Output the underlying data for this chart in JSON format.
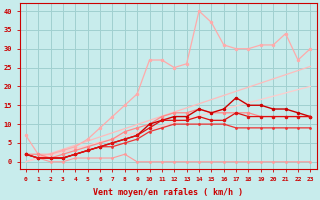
{
  "xlabel": "Vent moyen/en rafales ( km/h )",
  "background_color": "#c8ecec",
  "grid_color": "#a0d0d0",
  "x": [
    0,
    1,
    2,
    3,
    4,
    5,
    6,
    7,
    8,
    9,
    10,
    11,
    12,
    13,
    14,
    15,
    16,
    17,
    18,
    19,
    20,
    21,
    22,
    23
  ],
  "lines": [
    {
      "y": [
        7,
        2,
        2,
        3,
        4,
        6,
        9,
        12,
        15,
        18,
        27,
        27,
        25,
        26,
        40,
        37,
        31,
        30,
        30,
        31,
        31,
        34,
        27,
        30
      ],
      "color": "#ffaaaa",
      "lw": 0.9,
      "marker": "o",
      "ms": 2.5,
      "zorder": 3
    },
    {
      "y": [
        0,
        1.1,
        2.2,
        3.3,
        4.4,
        5.5,
        6.6,
        7.7,
        8.8,
        9.9,
        11,
        12.1,
        13.2,
        14.3,
        15.4,
        16.5,
        17.6,
        18.7,
        19.8,
        20.9,
        22,
        23.1,
        24.2,
        25.3
      ],
      "color": "#ffbbbb",
      "lw": 0.9,
      "marker": null,
      "ms": 0,
      "zorder": 2
    },
    {
      "y": [
        0,
        0.87,
        1.74,
        2.61,
        3.48,
        4.35,
        5.22,
        6.09,
        6.96,
        7.83,
        8.7,
        9.57,
        10.44,
        11.31,
        12.18,
        13.05,
        13.92,
        14.79,
        15.66,
        16.53,
        17.4,
        18.27,
        19.14,
        20.0
      ],
      "color": "#ffcccc",
      "lw": 0.9,
      "marker": null,
      "ms": 0,
      "zorder": 2
    },
    {
      "y": [
        2,
        2,
        1,
        2,
        3,
        4,
        5,
        6,
        8,
        9,
        10,
        12,
        13,
        13,
        14,
        13,
        13,
        13,
        13,
        12,
        12,
        12,
        12,
        12
      ],
      "color": "#ff8888",
      "lw": 0.9,
      "marker": "o",
      "ms": 2.5,
      "zorder": 3
    },
    {
      "y": [
        2,
        1,
        1,
        1,
        2,
        3,
        4,
        5,
        6,
        7,
        10,
        11,
        12,
        12,
        14,
        13,
        14,
        17,
        15,
        15,
        14,
        14,
        13,
        12
      ],
      "color": "#cc0000",
      "lw": 1.0,
      "marker": "o",
      "ms": 2.5,
      "zorder": 4
    },
    {
      "y": [
        2,
        1,
        1,
        1,
        2,
        3,
        4,
        5,
        6,
        7,
        9,
        11,
        11,
        11,
        12,
        11,
        11,
        13,
        12,
        12,
        12,
        12,
        12,
        12
      ],
      "color": "#dd1111",
      "lw": 0.9,
      "marker": "o",
      "ms": 2.5,
      "zorder": 4
    },
    {
      "y": [
        2,
        1,
        1,
        1,
        2,
        3,
        4,
        4,
        5,
        6,
        8,
        9,
        10,
        10,
        10,
        10,
        10,
        9,
        9,
        9,
        9,
        9,
        9,
        9
      ],
      "color": "#ee3333",
      "lw": 0.9,
      "marker": "o",
      "ms": 2,
      "zorder": 3
    },
    {
      "y": [
        2,
        1,
        0,
        0,
        1,
        1,
        1,
        1,
        2,
        0,
        0,
        0,
        0,
        0,
        0,
        0,
        0,
        0,
        0,
        0,
        0,
        0,
        0,
        0
      ],
      "color": "#ff9999",
      "lw": 0.8,
      "marker": "o",
      "ms": 2,
      "zorder": 3
    }
  ],
  "ylim": [
    -2,
    42
  ],
  "xlim": [
    -0.5,
    23.5
  ],
  "yticks": [
    0,
    5,
    10,
    15,
    20,
    25,
    30,
    35,
    40
  ],
  "xticks": [
    0,
    1,
    2,
    3,
    4,
    5,
    6,
    7,
    8,
    9,
    10,
    11,
    12,
    13,
    14,
    15,
    16,
    17,
    18,
    19,
    20,
    21,
    22,
    23
  ]
}
